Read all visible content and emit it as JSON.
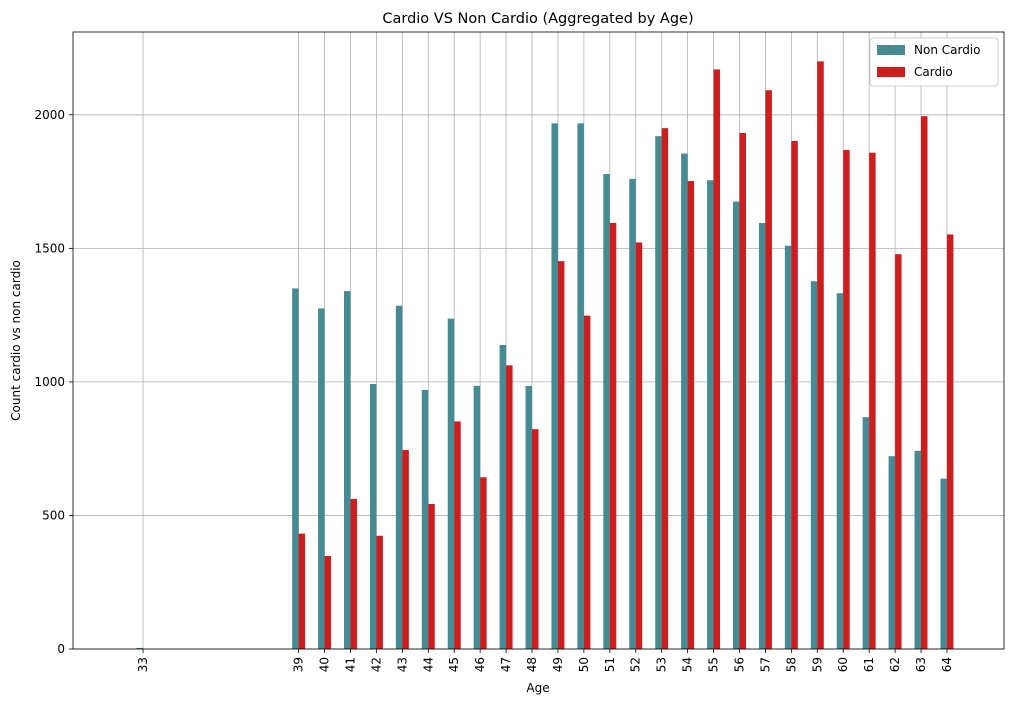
{
  "chart_data": {
    "type": "bar",
    "title": "Cardio VS Non Cardio  (Aggregated by Age)",
    "xlabel": "Age",
    "ylabel": "Count cardio vs non cardio",
    "ylim": [
      0,
      2310
    ],
    "xlim": [
      30.3,
      66.2
    ],
    "grid": true,
    "legend_position": "top-right",
    "yticks": [
      0,
      500,
      1000,
      1500,
      2000
    ],
    "categories": [
      33,
      39,
      40,
      41,
      42,
      43,
      44,
      45,
      46,
      47,
      48,
      49,
      50,
      51,
      52,
      53,
      54,
      55,
      56,
      57,
      58,
      59,
      60,
      61,
      62,
      63,
      64
    ],
    "series": [
      {
        "name": "Non Cardio",
        "color": "#468a93",
        "values": [
          4,
          1350,
          1275,
          1340,
          992,
          1285,
          970,
          1237,
          985,
          1138,
          985,
          1968,
          1968,
          1778,
          1760,
          1920,
          1855,
          1755,
          1675,
          1595,
          1510,
          1377,
          1332,
          868,
          722,
          742,
          638
        ]
      },
      {
        "name": "Cardio",
        "color": "#cc1e1e",
        "values": [
          0,
          432,
          348,
          562,
          424,
          745,
          543,
          852,
          643,
          1062,
          823,
          1452,
          1248,
          1595,
          1522,
          1950,
          1752,
          2170,
          1932,
          2092,
          1902,
          2200,
          1868,
          1858,
          1478,
          1995,
          1552
        ]
      }
    ]
  }
}
